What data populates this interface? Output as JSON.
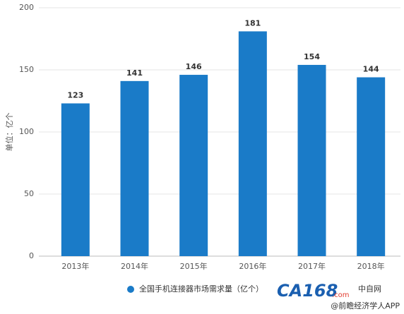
{
  "chart_data": {
    "type": "bar",
    "y_label": "单位：亿个",
    "categories": [
      "2013年",
      "2014年",
      "2015年",
      "2016年",
      "2017年",
      "2018年"
    ],
    "series": [
      {
        "name": "全国手机连接器市场需求量（亿个）",
        "color": "#1a7bc8",
        "values": [
          123,
          141,
          146,
          181,
          154,
          144
        ]
      }
    ],
    "ylim": [
      0,
      200
    ],
    "yticks": [
      0,
      50,
      100,
      150,
      200
    ],
    "grid": true,
    "watermarks": [
      "CA168",
      ".com",
      "中自网",
      "@前瞻经济学人APP"
    ]
  }
}
